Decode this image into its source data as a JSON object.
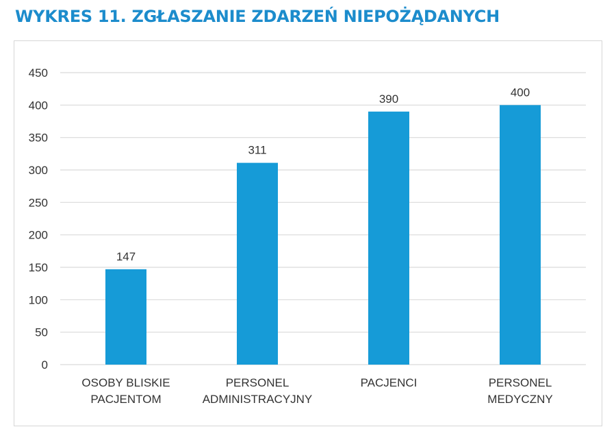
{
  "title": "WYKRES 11. ZGŁASZANIE ZDARZEŃ NIEPOŻĄDANYCH",
  "colors": {
    "title": "#1c8ccc",
    "bar": "#169bd7",
    "grid": "#d9d9d9",
    "text": "#333333"
  },
  "chart_data": {
    "type": "bar",
    "title": "WYKRES 11. ZGŁASZANIE ZDARZEŃ NIEPOŻĄDANYCH",
    "categories": [
      [
        "OSOBY BLISKIE",
        "PACJENTOM"
      ],
      [
        "PERSONEL",
        "ADMINISTRACYJNY"
      ],
      [
        "PACJENCI"
      ],
      [
        "PERSONEL",
        "MEDYCZNY"
      ]
    ],
    "values": [
      147,
      311,
      390,
      400
    ],
    "ylim": [
      0,
      450
    ],
    "yticks": [
      0,
      50,
      100,
      150,
      200,
      250,
      300,
      350,
      400,
      450
    ],
    "grid": true,
    "data_labels": true
  }
}
